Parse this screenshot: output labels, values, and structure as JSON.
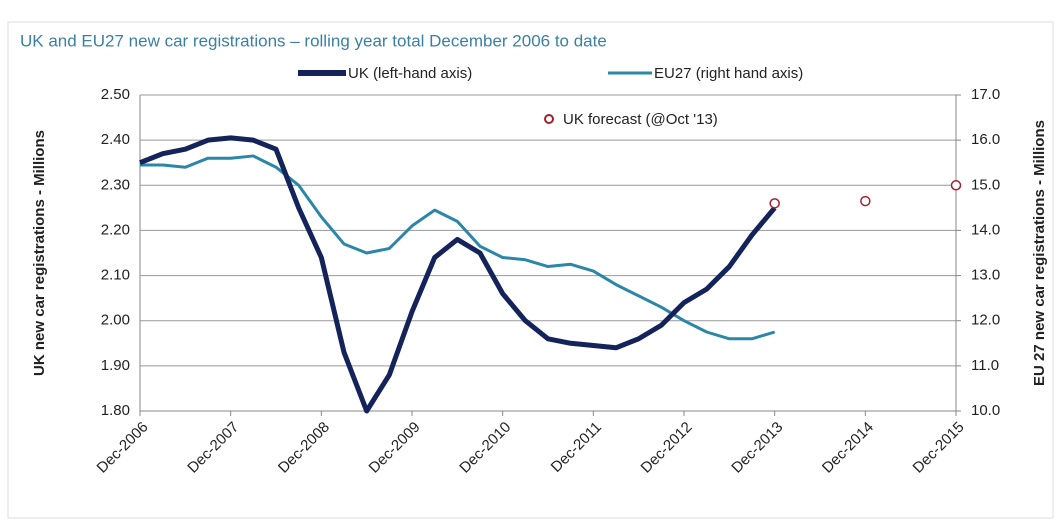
{
  "chart_data": {
    "type": "line",
    "title": "UK and EU27 new car registrations – rolling year total December 2006 to date",
    "y_label": "UK  new car registrations  - Millions",
    "y2_label": "EU 27  new car registrations  - Millions",
    "x": [
      "2006-12",
      "2007-03",
      "2007-06",
      "2007-09",
      "2007-12",
      "2008-03",
      "2008-06",
      "2008-09",
      "2008-12",
      "2009-03",
      "2009-06",
      "2009-09",
      "2009-12",
      "2010-03",
      "2010-06",
      "2010-09",
      "2010-12",
      "2011-03",
      "2011-06",
      "2011-09",
      "2011-12",
      "2012-03",
      "2012-06",
      "2012-09",
      "2012-12",
      "2013-03",
      "2013-06",
      "2013-09",
      "2013-12"
    ],
    "xlim": [
      "2006-12",
      "2015-12"
    ],
    "xticks": [
      {
        "value": "2006-12",
        "label": "Dec-2006"
      },
      {
        "value": "2007-12",
        "label": "Dec-2007"
      },
      {
        "value": "2008-12",
        "label": "Dec-2008"
      },
      {
        "value": "2009-12",
        "label": "Dec-2009"
      },
      {
        "value": "2010-12",
        "label": "Dec-2010"
      },
      {
        "value": "2011-12",
        "label": "Dec-2011"
      },
      {
        "value": "2012-12",
        "label": "Dec-2012"
      },
      {
        "value": "2013-12",
        "label": "Dec-2013"
      },
      {
        "value": "2014-12",
        "label": "Dec-2014"
      },
      {
        "value": "2015-12",
        "label": "Dec-2015"
      }
    ],
    "ylim": [
      1.8,
      2.5
    ],
    "yticks": [
      {
        "value": 1.8,
        "label": "1.80"
      },
      {
        "value": 1.9,
        "label": "1.90"
      },
      {
        "value": 2,
        "label": "2.00"
      },
      {
        "value": 2.1,
        "label": "2.10"
      },
      {
        "value": 2.2,
        "label": "2.20"
      },
      {
        "value": 2.3,
        "label": "2.30"
      },
      {
        "value": 2.4,
        "label": "2.40"
      },
      {
        "value": 2.5,
        "label": "2.50"
      }
    ],
    "y2lim": [
      10,
      17
    ],
    "y2ticks": [
      {
        "value": 10,
        "label": "10.0"
      },
      {
        "value": 11,
        "label": "11.0"
      },
      {
        "value": 12,
        "label": "12.0"
      },
      {
        "value": 13,
        "label": "13.0"
      },
      {
        "value": 14,
        "label": "14.0"
      },
      {
        "value": 15,
        "label": "15.0"
      },
      {
        "value": 16,
        "label": "16.0"
      },
      {
        "value": 17,
        "label": "17.0"
      }
    ],
    "grid": true,
    "series": [
      {
        "name": "UK (left-hand axis)",
        "color": "#14245a",
        "values": [
          2.35,
          2.37,
          2.38,
          2.4,
          2.405,
          2.4,
          2.38,
          2.25,
          2.14,
          1.93,
          1.8,
          1.88,
          2.02,
          2.14,
          2.18,
          2.15,
          2.06,
          2.0,
          1.96,
          1.95,
          1.945,
          1.94,
          1.96,
          1.99,
          2.04,
          2.07,
          2.12,
          2.19,
          2.25
        ]
      },
      {
        "name": "EU27 (right hand axis)",
        "color": "#2b86a8",
        "axis": "y2",
        "values": [
          15.45,
          15.45,
          15.4,
          15.6,
          15.6,
          15.65,
          15.4,
          15.0,
          14.3,
          13.7,
          13.5,
          13.6,
          14.1,
          14.45,
          14.2,
          13.65,
          13.4,
          13.35,
          13.2,
          13.25,
          13.1,
          12.8,
          12.55,
          12.3,
          12.0,
          11.75,
          11.6,
          11.6,
          11.75
        ]
      },
      {
        "name": "UK forecast (@Oct '13)",
        "color": "#a3202e",
        "x": [
          "2013-12",
          "2014-12",
          "2015-12"
        ],
        "values": [
          2.26,
          2.265,
          2.3
        ]
      }
    ]
  }
}
